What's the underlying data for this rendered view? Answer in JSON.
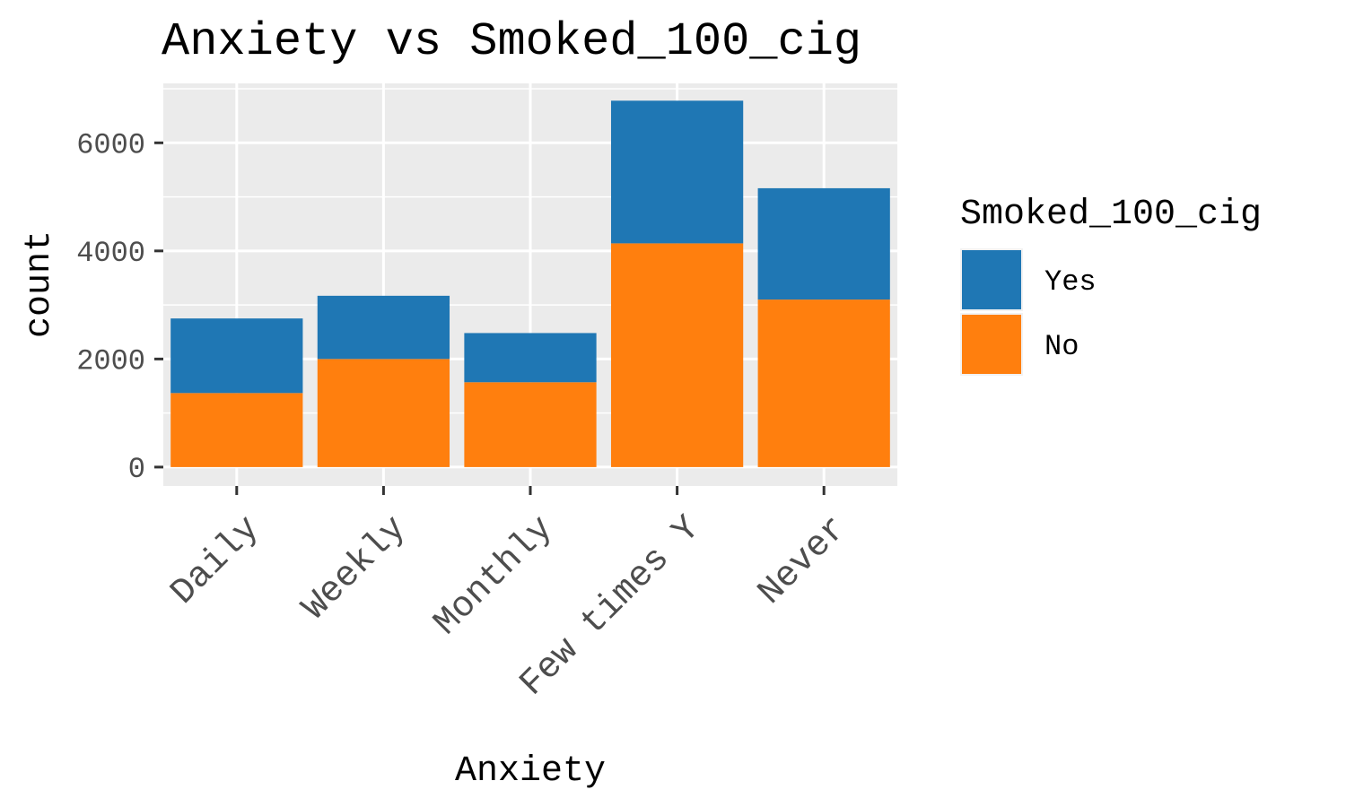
{
  "chart_data": {
    "type": "bar",
    "stacked": true,
    "title": "Anxiety vs Smoked_100_cig",
    "xlabel": "Anxiety",
    "ylabel": "count",
    "categories": [
      "Daily",
      "Weekly",
      "Monthly",
      "Few times Y",
      "Never"
    ],
    "series": [
      {
        "name": "No",
        "color": "#ff7f0e",
        "values": [
          1370,
          2000,
          1570,
          4140,
          3100
        ]
      },
      {
        "name": "Yes",
        "color": "#1f77b4",
        "values": [
          1380,
          1170,
          910,
          2640,
          2060
        ]
      }
    ],
    "ylim": [
      -350,
      7100
    ],
    "y_ticks": [
      0,
      2000,
      4000,
      6000
    ],
    "y_tick_labels": [
      "0",
      "2000",
      "4000",
      "6000"
    ],
    "legend": {
      "title": "Smoked_100_cig",
      "placement": "right",
      "items": [
        {
          "label": "Yes",
          "color": "#1f77b4"
        },
        {
          "label": "No",
          "color": "#ff7f0e"
        }
      ]
    },
    "grid": true,
    "panel_background": "#ebebeb",
    "grid_color": "#ffffff",
    "tick_label_color": "#4d4d4d"
  }
}
